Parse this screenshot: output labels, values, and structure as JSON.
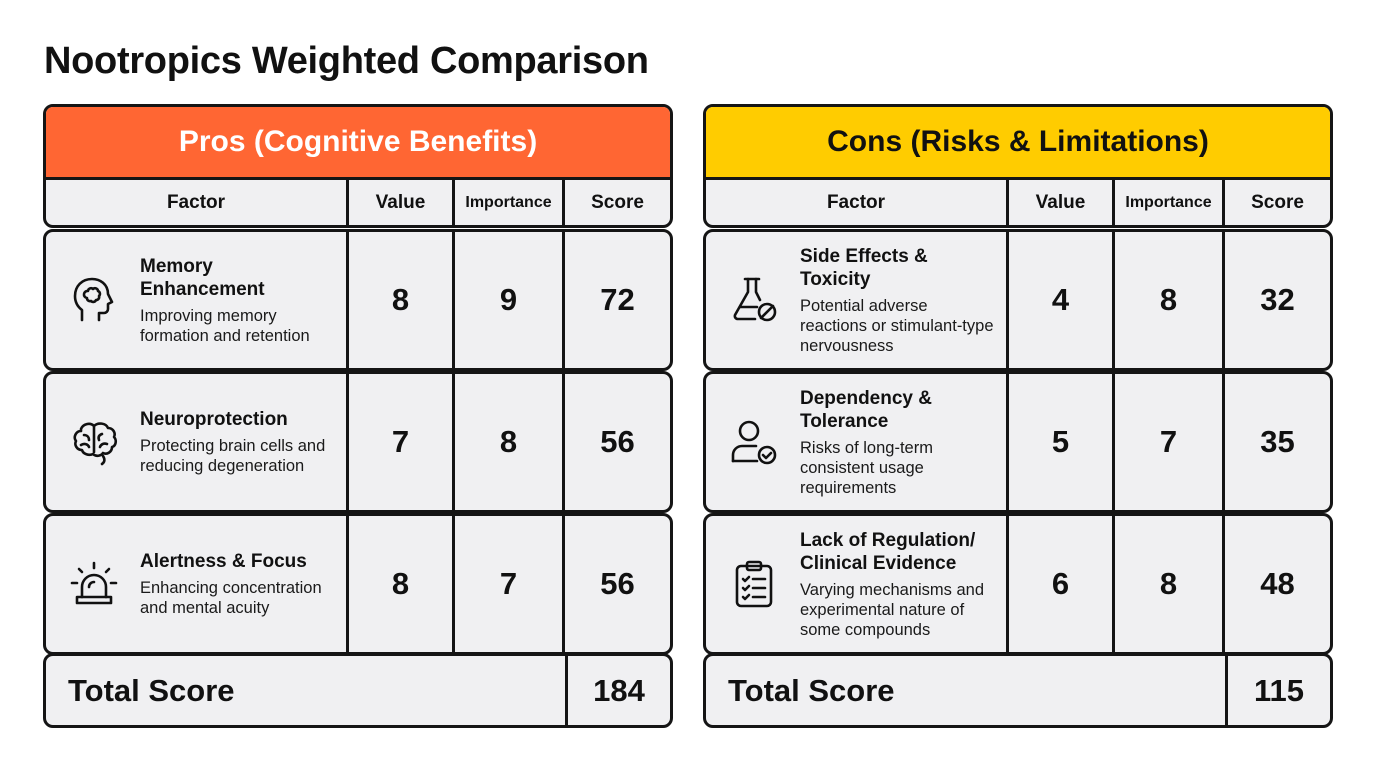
{
  "title": "Nootropics Weighted Comparison",
  "columns": {
    "factor": "Factor",
    "value": "Value",
    "importance": "Importance",
    "score": "Score"
  },
  "pros": {
    "header": "Pros (Cognitive Benefits)",
    "color": "#ff6633",
    "rows": [
      {
        "icon": "head-brain-icon",
        "name": "Memory Enhancement",
        "desc": "Improving memory formation and retention",
        "value": "8",
        "importance": "9",
        "score": "72"
      },
      {
        "icon": "brain-icon",
        "name": "Neuroprotection",
        "desc": "Protecting brain cells and reducing degeneration",
        "value": "7",
        "importance": "8",
        "score": "56"
      },
      {
        "icon": "alarm-light-icon",
        "name": "Alertness & Focus",
        "desc": "Enhancing concentration and mental acuity",
        "value": "8",
        "importance": "7",
        "score": "56"
      }
    ],
    "total_label": "Total Score",
    "total": "184"
  },
  "cons": {
    "header": "Cons (Risks & Limitations)",
    "color": "#ffcc00",
    "rows": [
      {
        "icon": "flask-prohibited-icon",
        "name": "Side Effects & Toxicity",
        "desc": "Potential adverse reactions or stimulant-type nervousness",
        "value": "4",
        "importance": "8",
        "score": "32"
      },
      {
        "icon": "user-check-icon",
        "name": "Dependency & Tolerance",
        "desc": "Risks of long-term consistent usage requirements",
        "value": "5",
        "importance": "7",
        "score": "35"
      },
      {
        "icon": "clipboard-checklist-icon",
        "name": "Lack of Regulation/ Clinical Evidence",
        "desc": "Varying mechanisms and experimental nature of some compounds",
        "value": "6",
        "importance": "8",
        "score": "48"
      }
    ],
    "total_label": "Total Score",
    "total": "115"
  }
}
